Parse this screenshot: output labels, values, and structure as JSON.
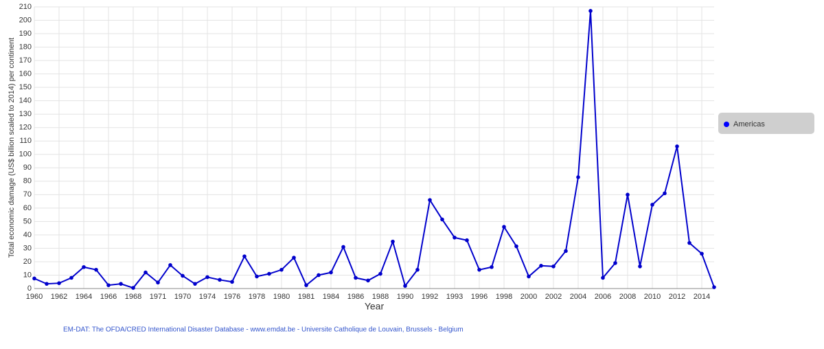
{
  "chart_data": {
    "type": "line",
    "y_label": "Total economic damage (US$ billion scaled to 2014) per continent",
    "x_label": "Year",
    "categories": [
      "1960",
      null,
      "1962",
      null,
      "1964",
      null,
      "1966",
      null,
      "1968",
      null,
      "1971",
      null,
      "1970",
      null,
      "1974",
      null,
      "1976",
      null,
      "1978",
      null,
      "1980",
      null,
      "1981",
      null,
      "1984",
      null,
      "1986",
      null,
      "1988",
      null,
      "1990",
      null,
      "1992",
      null,
      "1993",
      null,
      "1996",
      null,
      "1998",
      null,
      "2000",
      null,
      "2002",
      null,
      "2004",
      null,
      "2006",
      null,
      "2008",
      null,
      "2010",
      null,
      "2012",
      null,
      "2014",
      null
    ],
    "series": [
      {
        "name": "Americas",
        "color": "#0000cc",
        "values": [
          7.5,
          3.5,
          4,
          8,
          16,
          14,
          2.5,
          3.5,
          0.5,
          12,
          4.5,
          17.5,
          9.5,
          3.5,
          8.5,
          6.5,
          5,
          24,
          9,
          11,
          14,
          23,
          2.5,
          10,
          12,
          31,
          8,
          6,
          11,
          35,
          2,
          14,
          66,
          51.5,
          38,
          36,
          14,
          16,
          46,
          31.5,
          9,
          17,
          16.5,
          28,
          83,
          207,
          8,
          19,
          70,
          16.5,
          62.5,
          71,
          106,
          34,
          26,
          1
        ]
      }
    ],
    "ylim": [
      0,
      210
    ],
    "yticks": [
      0,
      10,
      20,
      30,
      40,
      50,
      60,
      70,
      80,
      90,
      100,
      110,
      120,
      130,
      140,
      150,
      160,
      170,
      180,
      190,
      200,
      210
    ],
    "grid": true,
    "legend": "right",
    "source": "EM-DAT: The OFDA/CRED International Disaster Database - www.emdat.be - Universite Catholique de Louvain, Brussels - Belgium"
  }
}
